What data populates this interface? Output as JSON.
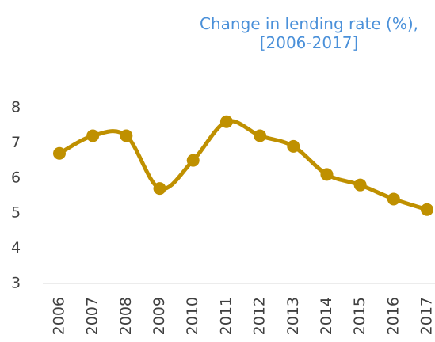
{
  "chart_data": {
    "type": "line",
    "title": "Change in lending rate (%), [2006-2017]",
    "categories": [
      "2006",
      "2007",
      "2008",
      "2009",
      "2010",
      "2011",
      "2012",
      "2013",
      "2014",
      "2015",
      "2016",
      "2017"
    ],
    "series": [
      {
        "color": "#bf9000",
        "values": [
          6.7,
          7.2,
          7.2,
          5.7,
          6.5,
          7.6,
          7.2,
          6.9,
          6.1,
          5.8,
          5.4,
          5.1
        ]
      }
    ],
    "ylim": [
      3,
      8
    ],
    "yticks": [
      3,
      4,
      5,
      6,
      7,
      8
    ],
    "smooth": true
  }
}
